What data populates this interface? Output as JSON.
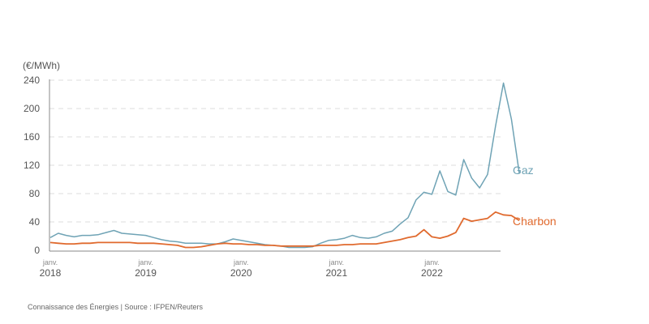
{
  "chart_data": {
    "type": "line",
    "title": "",
    "ylabel": "(€/MWh)",
    "xlabel": "",
    "ylim": [
      0,
      240
    ],
    "yticks": [
      0,
      40,
      80,
      120,
      160,
      200,
      240
    ],
    "ytick_labels": [
      "0",
      "40",
      "80",
      "120",
      "160",
      "200",
      "240"
    ],
    "grid": "horizontal-dashed",
    "x_start": "2018-01",
    "x_frequency": "monthly",
    "xticks": [
      {
        "month": "janv.",
        "year": "2018",
        "index": 0
      },
      {
        "month": "janv.",
        "year": "2019",
        "index": 12
      },
      {
        "month": "janv.",
        "year": "2020",
        "index": 24
      },
      {
        "month": "janv.",
        "year": "2021",
        "index": 36
      },
      {
        "month": "janv.",
        "year": "2022",
        "index": 48
      }
    ],
    "series": [
      {
        "name": "Gaz",
        "color": "#6fa3b5",
        "values": [
          18,
          24,
          21,
          19,
          21,
          21,
          22,
          25,
          28,
          24,
          23,
          22,
          21,
          18,
          15,
          13,
          12,
          10,
          10,
          10,
          9,
          9,
          12,
          16,
          14,
          12,
          10,
          8,
          7,
          6,
          4,
          4,
          4,
          5,
          10,
          14,
          15,
          17,
          21,
          18,
          17,
          19,
          24,
          27,
          37,
          46,
          71,
          82,
          79,
          112,
          83,
          78,
          128,
          102,
          88,
          107,
          175,
          236,
          185,
          108
        ]
      },
      {
        "name": "Charbon",
        "color": "#e06a2e",
        "values": [
          11,
          10,
          9,
          9,
          10,
          10,
          11,
          11,
          11,
          11,
          11,
          10,
          10,
          10,
          9,
          8,
          7,
          4,
          4,
          5,
          7,
          9,
          10,
          9,
          9,
          8,
          8,
          7,
          7,
          6,
          6,
          6,
          6,
          6,
          7,
          7,
          7,
          8,
          8,
          9,
          9,
          9,
          11,
          13,
          15,
          18,
          20,
          29,
          19,
          17,
          20,
          25,
          45,
          41,
          43,
          45,
          54,
          50,
          49,
          42
        ]
      }
    ],
    "legend": "right-of-line-ends"
  },
  "footer": {
    "source": "Connaissance des Énergies | Source : IFPEN/Reuters"
  }
}
